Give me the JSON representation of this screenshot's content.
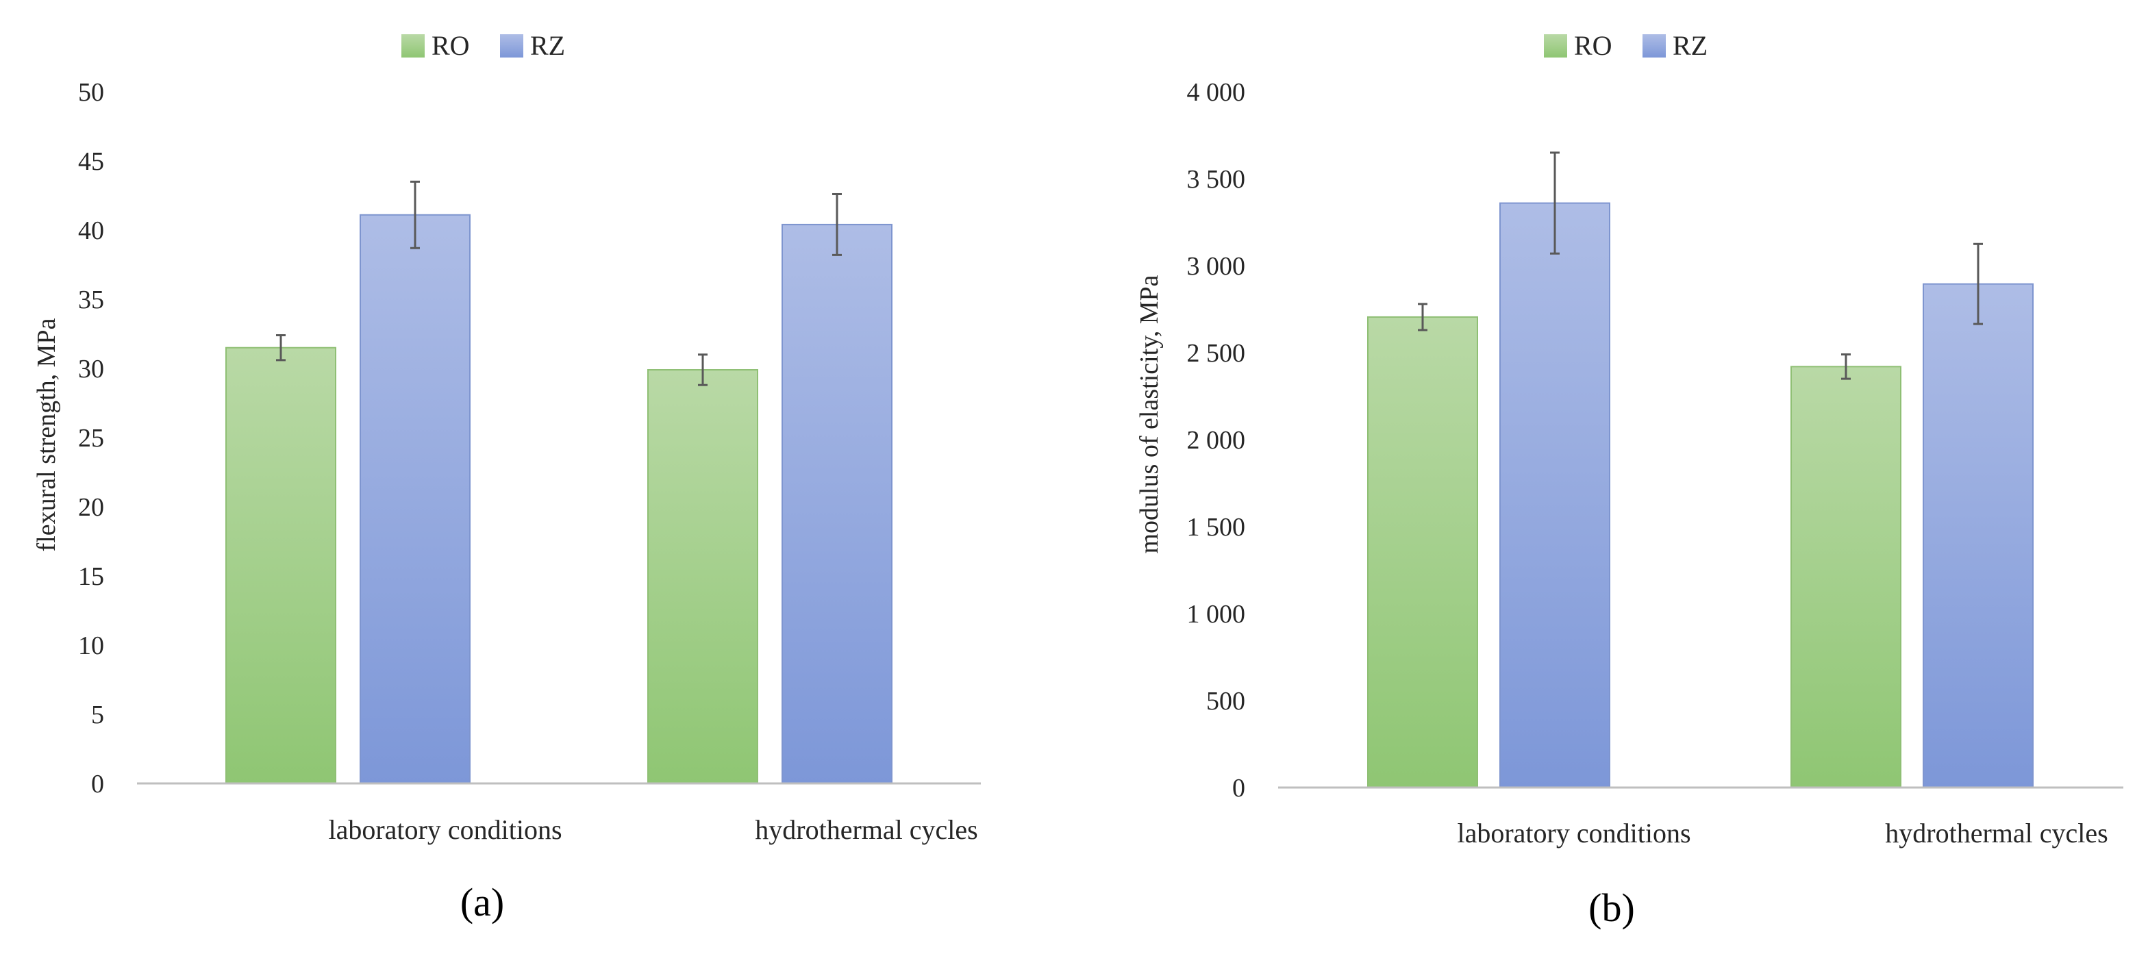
{
  "colors": {
    "ro_top": "#b9d9a6",
    "ro_bottom": "#8fc673",
    "rz_top": "#aebde6",
    "rz_bottom": "#7d97d8",
    "ro_stroke": "#8fbf74",
    "rz_stroke": "#7e95cf",
    "axis": "#bfbfbf",
    "errorbar": "#595959"
  },
  "chart_data": [
    {
      "type": "bar",
      "panel_label": "(a)",
      "categories": [
        "laboratory conditions",
        "hydrothermal cycles"
      ],
      "series": [
        {
          "name": "RO",
          "values": [
            31.5,
            29.9
          ],
          "errors": [
            0.9,
            1.1
          ]
        },
        {
          "name": "RZ",
          "values": [
            41.1,
            40.4
          ],
          "errors": [
            2.4,
            2.2
          ]
        }
      ],
      "title": "",
      "xlabel": "",
      "ylabel": "flexural strength, MPa",
      "ylim": [
        0,
        50
      ],
      "yticks": [
        0,
        5,
        10,
        15,
        20,
        25,
        30,
        35,
        40,
        45,
        50
      ],
      "ytick_labels": [
        "0",
        "5",
        "10",
        "15",
        "20",
        "25",
        "30",
        "35",
        "40",
        "45",
        "50"
      ],
      "legend": {
        "position": "top-center",
        "entries": [
          "RO",
          "RZ"
        ]
      },
      "grid": false
    },
    {
      "type": "bar",
      "panel_label": "(b)",
      "categories": [
        "laboratory conditions",
        "hydrothermal cycles"
      ],
      "series": [
        {
          "name": "RO",
          "values": [
            2705,
            2420
          ],
          "errors": [
            75,
            70
          ]
        },
        {
          "name": "RZ",
          "values": [
            3360,
            2895
          ],
          "errors": [
            290,
            230
          ]
        }
      ],
      "title": "",
      "xlabel": "",
      "ylabel": "modulus of elasticity, MPa",
      "ylim": [
        0,
        4000
      ],
      "yticks": [
        0,
        500,
        1000,
        1500,
        2000,
        2500,
        3000,
        3500,
        4000
      ],
      "ytick_labels": [
        "0",
        "500",
        "1 000",
        "1 500",
        "2 000",
        "2 500",
        "3 000",
        "3 500",
        "4 000"
      ],
      "legend": {
        "position": "top-center",
        "entries": [
          "RO",
          "RZ"
        ]
      },
      "grid": false
    }
  ]
}
